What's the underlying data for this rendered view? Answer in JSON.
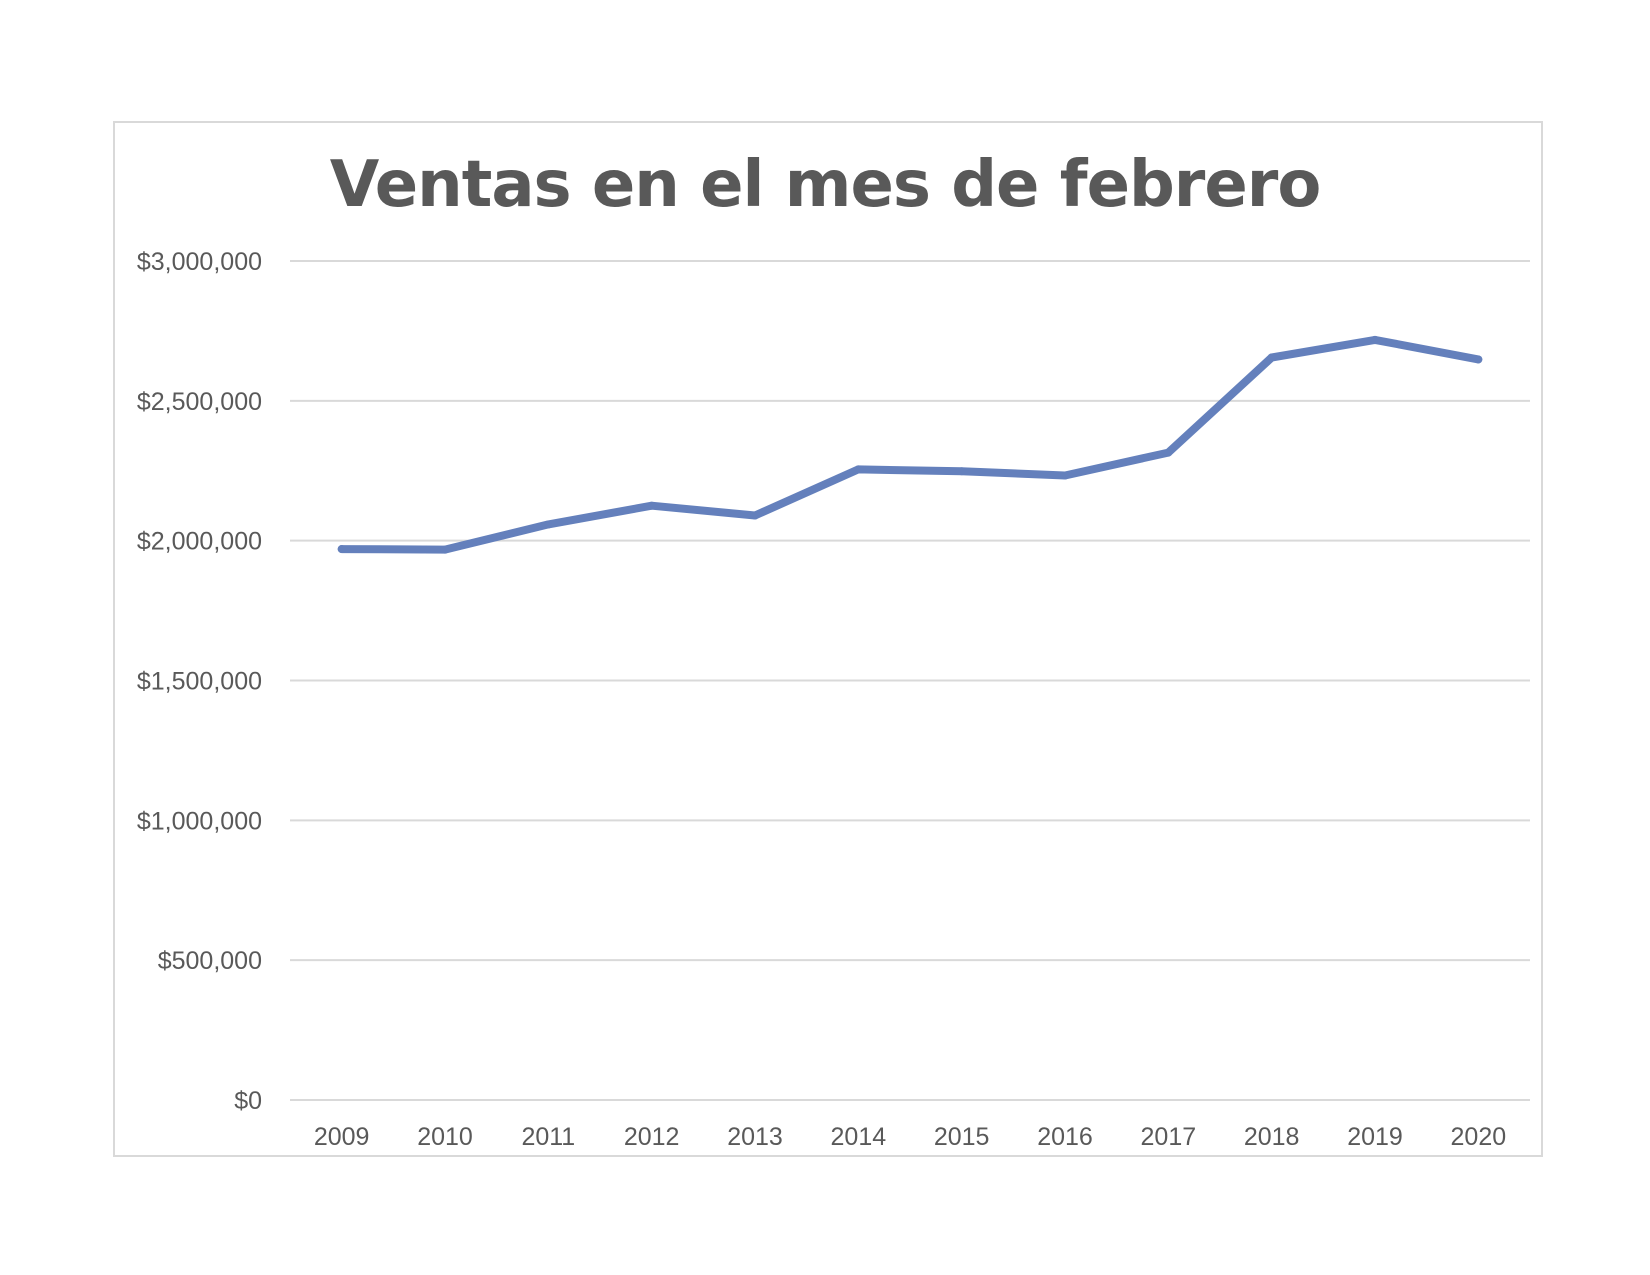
{
  "chart_data": {
    "type": "line",
    "title": "Ventas en el mes de febrero",
    "xlabel": "",
    "ylabel": "",
    "categories": [
      "2009",
      "2010",
      "2011",
      "2012",
      "2013",
      "2014",
      "2015",
      "2016",
      "2017",
      "2018",
      "2019",
      "2020"
    ],
    "series": [
      {
        "values": [
          1970000,
          1968000,
          2058000,
          2125000,
          2090000,
          2255000,
          2248000,
          2233000,
          2315000,
          2655000,
          2718000,
          2648000
        ]
      }
    ],
    "ylim": [
      0,
      3000000
    ],
    "yticks": [
      0,
      500000,
      1000000,
      1500000,
      2000000,
      2500000,
      3000000
    ],
    "ytick_labels": [
      "$0",
      "$500,000",
      "$1,000,000",
      "$1,500,000",
      "$2,000,000",
      "$2,500,000",
      "$3,000,000"
    ],
    "grid": true,
    "legend": "none",
    "line_color": "#6480bc",
    "grid_color": "#d9d9d9"
  }
}
